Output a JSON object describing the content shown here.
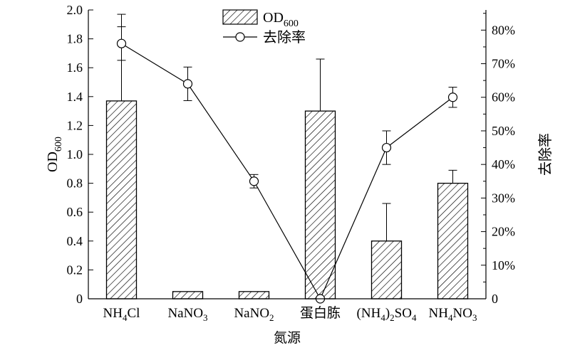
{
  "chart_data": {
    "type": "bar",
    "categories": [
      "NH4Cl",
      "NaNO3",
      "NaNO2",
      "蛋白胨",
      "(NH4)2SO4",
      "NH4NO3"
    ],
    "category_labels": [
      [
        {
          "t": "NH",
          "s": false
        },
        {
          "t": "4",
          "s": true
        },
        {
          "t": "Cl",
          "s": false
        }
      ],
      [
        {
          "t": "NaNO",
          "s": false
        },
        {
          "t": "3",
          "s": true
        }
      ],
      [
        {
          "t": "NaNO",
          "s": false
        },
        {
          "t": "2",
          "s": true
        }
      ],
      [
        {
          "t": "蛋白胨",
          "s": false
        }
      ],
      [
        {
          "t": "(NH",
          "s": false
        },
        {
          "t": "4",
          "s": true
        },
        {
          "t": ")",
          "s": false
        },
        {
          "t": "2",
          "s": true
        },
        {
          "t": "SO",
          "s": false
        },
        {
          "t": "4",
          "s": true
        }
      ],
      [
        {
          "t": "NH",
          "s": false
        },
        {
          "t": "4",
          "s": true
        },
        {
          "t": "NO",
          "s": false
        },
        {
          "t": "3",
          "s": true
        }
      ]
    ],
    "series": [
      {
        "name": "OD600",
        "name_parts": [
          {
            "t": "OD",
            "s": false
          },
          {
            "t": "600",
            "s": true
          }
        ],
        "kind": "bar",
        "axis": "left",
        "values": [
          1.37,
          0.05,
          0.05,
          1.3,
          0.4,
          0.8
        ],
        "error": [
          0.6,
          0,
          0,
          0.36,
          0.26,
          0.09
        ]
      },
      {
        "name": "去除率",
        "kind": "line",
        "axis": "right",
        "values": [
          76,
          64,
          35,
          0,
          45,
          60
        ],
        "error": [
          5,
          5,
          2,
          0,
          5,
          3
        ]
      }
    ],
    "xlabel": "氮源",
    "ylabel_parts": [
      {
        "t": "OD",
        "s": false
      },
      {
        "t": "600",
        "s": true
      }
    ],
    "ylabel_right": "去除率",
    "ylim": [
      0,
      2.0
    ],
    "y_ticks": [
      "0",
      "0.2",
      "0.4",
      "0.6",
      "0.8",
      "1.0",
      "1.2",
      "1.4",
      "1.6",
      "1.8",
      "2.0"
    ],
    "y2lim": [
      0,
      86
    ],
    "y2_ticks": [
      "0",
      "10%",
      "20%",
      "30%",
      "40%",
      "50%",
      "60%",
      "70%",
      "80%"
    ],
    "legend_position": "top-center",
    "grid": false
  }
}
